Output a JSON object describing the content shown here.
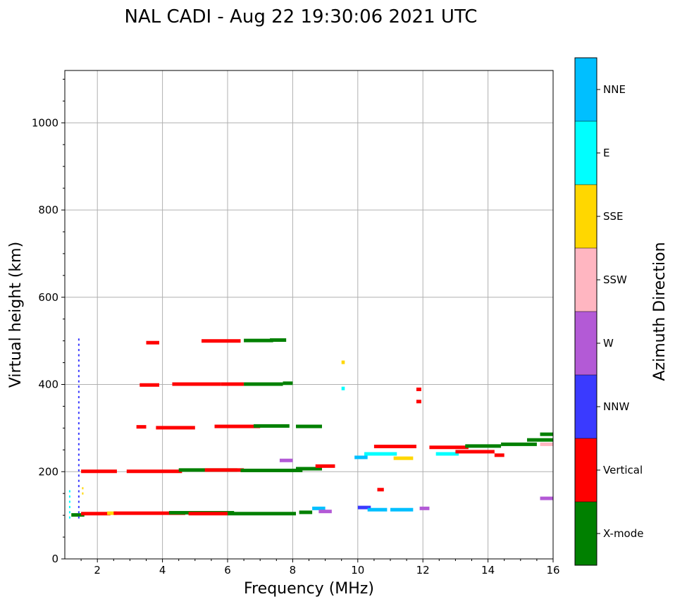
{
  "chart_data": {
    "type": "scatter",
    "title": "NAL CADI - Aug 22 19:30:06 2021 UTC",
    "xlabel": "Frequency (MHz)",
    "ylabel": "Virtual height (km)",
    "xlim": [
      1,
      16
    ],
    "ylim": [
      0,
      1120
    ],
    "xticks": [
      2,
      4,
      6,
      8,
      10,
      12,
      14,
      16
    ],
    "yticks": [
      0,
      200,
      400,
      600,
      800,
      1000
    ],
    "grid": true,
    "colorbar": {
      "title": "Azimuth Direction",
      "categories": [
        {
          "label": "X-mode",
          "color": "#008000"
        },
        {
          "label": "Vertical",
          "color": "#ff0000"
        },
        {
          "label": "NNW",
          "color": "#3a3aff"
        },
        {
          "label": "W",
          "color": "#b35ad6"
        },
        {
          "label": "SSW",
          "color": "#ffb6c1"
        },
        {
          "label": "SSE",
          "color": "#ffd700"
        },
        {
          "label": "E",
          "color": "#00ffff"
        },
        {
          "label": "NNE",
          "color": "#00bfff"
        }
      ]
    },
    "segments": [
      {
        "d": "X-mode",
        "x1": 1.2,
        "x2": 1.6,
        "h": 100
      },
      {
        "d": "Vertical",
        "x1": 1.5,
        "x2": 2.4,
        "h": 103
      },
      {
        "d": "SSE",
        "x1": 2.3,
        "x2": 2.6,
        "h": 104
      },
      {
        "d": "Vertical",
        "x1": 2.5,
        "x2": 4.7,
        "h": 104
      },
      {
        "d": "X-mode",
        "x1": 4.2,
        "x2": 6.2,
        "h": 105
      },
      {
        "d": "Vertical",
        "x1": 4.8,
        "x2": 6.0,
        "h": 103
      },
      {
        "d": "X-mode",
        "x1": 6.0,
        "x2": 8.1,
        "h": 103
      },
      {
        "d": "X-mode",
        "x1": 8.2,
        "x2": 8.6,
        "h": 106
      },
      {
        "d": "NNE",
        "x1": 8.6,
        "x2": 9.0,
        "h": 115
      },
      {
        "d": "W",
        "x1": 8.8,
        "x2": 9.2,
        "h": 108
      },
      {
        "d": "NNW",
        "x1": 10.0,
        "x2": 10.4,
        "h": 117
      },
      {
        "d": "NNE",
        "x1": 10.3,
        "x2": 10.9,
        "h": 112
      },
      {
        "d": "NNE",
        "x1": 11.0,
        "x2": 11.7,
        "h": 112
      },
      {
        "d": "W",
        "x1": 11.9,
        "x2": 12.2,
        "h": 115
      },
      {
        "d": "Vertical",
        "x1": 10.6,
        "x2": 10.8,
        "h": 158
      },
      {
        "d": "W",
        "x1": 15.6,
        "x2": 16.0,
        "h": 138
      },
      {
        "d": "Vertical",
        "x1": 1.5,
        "x2": 2.6,
        "h": 200
      },
      {
        "d": "Vertical",
        "x1": 2.9,
        "x2": 4.6,
        "h": 200
      },
      {
        "d": "X-mode",
        "x1": 4.5,
        "x2": 6.3,
        "h": 203
      },
      {
        "d": "Vertical",
        "x1": 5.3,
        "x2": 6.5,
        "h": 203
      },
      {
        "d": "X-mode",
        "x1": 6.4,
        "x2": 8.3,
        "h": 202
      },
      {
        "d": "W",
        "x1": 7.6,
        "x2": 8.0,
        "h": 225
      },
      {
        "d": "X-mode",
        "x1": 8.1,
        "x2": 8.9,
        "h": 206
      },
      {
        "d": "Vertical",
        "x1": 8.7,
        "x2": 9.3,
        "h": 212
      },
      {
        "d": "NNE",
        "x1": 9.9,
        "x2": 10.3,
        "h": 232
      },
      {
        "d": "E",
        "x1": 10.2,
        "x2": 11.2,
        "h": 240
      },
      {
        "d": "Vertical",
        "x1": 10.5,
        "x2": 11.8,
        "h": 257
      },
      {
        "d": "SSE",
        "x1": 11.1,
        "x2": 11.7,
        "h": 230
      },
      {
        "d": "Vertical",
        "x1": 12.2,
        "x2": 13.4,
        "h": 255
      },
      {
        "d": "E",
        "x1": 12.4,
        "x2": 13.1,
        "h": 240
      },
      {
        "d": "Vertical",
        "x1": 13.0,
        "x2": 14.2,
        "h": 245
      },
      {
        "d": "X-mode",
        "x1": 13.3,
        "x2": 14.4,
        "h": 258
      },
      {
        "d": "X-mode",
        "x1": 14.4,
        "x2": 15.5,
        "h": 262
      },
      {
        "d": "X-mode",
        "x1": 15.2,
        "x2": 16.0,
        "h": 272
      },
      {
        "d": "X-mode",
        "x1": 15.6,
        "x2": 16.0,
        "h": 285
      },
      {
        "d": "SSW",
        "x1": 15.6,
        "x2": 16.0,
        "h": 262
      },
      {
        "d": "Vertical",
        "x1": 14.2,
        "x2": 14.5,
        "h": 237
      },
      {
        "d": "Vertical",
        "x1": 3.2,
        "x2": 3.5,
        "h": 302
      },
      {
        "d": "Vertical",
        "x1": 3.8,
        "x2": 5.0,
        "h": 300
      },
      {
        "d": "Vertical",
        "x1": 5.6,
        "x2": 7.0,
        "h": 303
      },
      {
        "d": "X-mode",
        "x1": 6.8,
        "x2": 7.9,
        "h": 304
      },
      {
        "d": "X-mode",
        "x1": 8.1,
        "x2": 8.9,
        "h": 303
      },
      {
        "d": "Vertical",
        "x1": 3.3,
        "x2": 3.9,
        "h": 398
      },
      {
        "d": "Vertical",
        "x1": 4.3,
        "x2": 5.8,
        "h": 400
      },
      {
        "d": "Vertical",
        "x1": 5.8,
        "x2": 6.5,
        "h": 400
      },
      {
        "d": "X-mode",
        "x1": 6.5,
        "x2": 7.7,
        "h": 400
      },
      {
        "d": "X-mode",
        "x1": 7.7,
        "x2": 8.0,
        "h": 402
      },
      {
        "d": "Vertical",
        "x1": 3.5,
        "x2": 3.9,
        "h": 495
      },
      {
        "d": "Vertical",
        "x1": 5.2,
        "x2": 6.4,
        "h": 499
      },
      {
        "d": "X-mode",
        "x1": 6.5,
        "x2": 7.4,
        "h": 500
      },
      {
        "d": "X-mode",
        "x1": 7.3,
        "x2": 7.8,
        "h": 501
      },
      {
        "d": "Vertical",
        "x1": 11.8,
        "x2": 11.95,
        "h": 388
      },
      {
        "d": "Vertical",
        "x1": 11.8,
        "x2": 11.95,
        "h": 360
      },
      {
        "d": "SSE",
        "x1": 9.5,
        "x2": 9.6,
        "h": 450
      },
      {
        "d": "E",
        "x1": 9.5,
        "x2": 9.6,
        "h": 390
      }
    ],
    "dots": [
      {
        "d": "NNW",
        "x": 1.43,
        "h_from": 95,
        "h_to": 510
      },
      {
        "d": "E",
        "x": 1.15,
        "h_from": 95,
        "h_to": 165
      },
      {
        "d": "SSE",
        "x": 1.55,
        "h_from": 150,
        "h_to": 165
      }
    ]
  }
}
